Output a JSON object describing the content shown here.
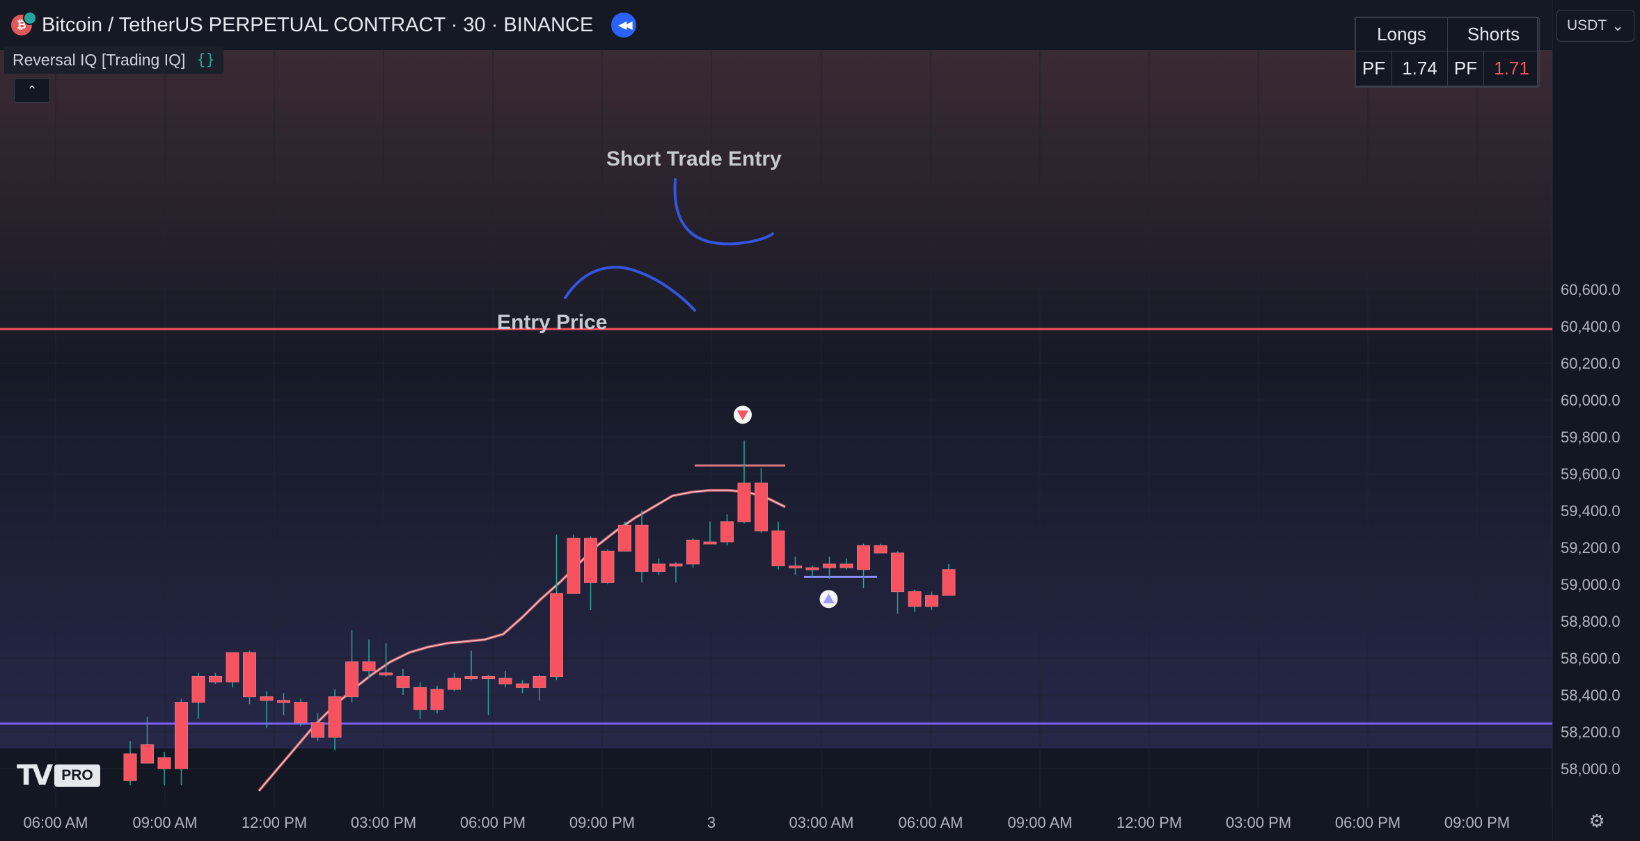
{
  "header": {
    "symbol_title": "Bitcoin / TetherUS PERPETUAL CONTRACT · 30 · BINANCE",
    "logo_letter": "₿",
    "replay_icon": "rewind-icon"
  },
  "indicator": {
    "name": "Reversal IQ [Trading IQ]",
    "source_icon": "{}"
  },
  "collapse_icon": "⌃",
  "stats": {
    "longs_label": "Longs",
    "shorts_label": "Shorts",
    "pf_label": "PF",
    "longs_pf": "1.74",
    "shorts_pf": "1.71"
  },
  "currency": {
    "label": "USDT",
    "caret": "⌄"
  },
  "logo": {
    "mark": "TV",
    "badge": "PRO"
  },
  "settings_icon": "gear-icon",
  "annotations": {
    "short_entry": "Short Trade Entry",
    "entry_price": "Entry Price"
  },
  "colors": {
    "background": "#131722",
    "up_candle": "#26a69a",
    "down_candle": "#f7525f",
    "resistance": "#f7525f",
    "support": "#7b61ff",
    "annotation_stroke": "#3355e0",
    "signal_down": "#f7525f",
    "signal_up": "#9c9cff"
  },
  "chart_data": {
    "type": "candlestick",
    "title": "Bitcoin / TetherUS PERPETUAL CONTRACT · 30 · BINANCE",
    "y_axis": {
      "side": "right",
      "ticks": [
        60600,
        60400,
        60200,
        60000,
        59800,
        59600,
        59400,
        59200,
        59000,
        58800,
        58600,
        58400,
        58200,
        58000
      ],
      "tick_labels": [
        "60,600.0",
        "60,400.0",
        "60,200.0",
        "60,000.0",
        "59,800.0",
        "59,600.0",
        "59,400.0",
        "59,200.0",
        "59,000.0",
        "58,800.0",
        "58,600.0",
        "58,400.0",
        "58,200.0",
        "58,000.0"
      ]
    },
    "x_axis": {
      "tick_labels": [
        "06:00 AM",
        "09:00 AM",
        "12:00 PM",
        "03:00 PM",
        "06:00 PM",
        "09:00 PM",
        "3",
        "03:00 AM",
        "06:00 AM",
        "09:00 AM",
        "12:00 PM",
        "03:00 PM",
        "06:00 PM",
        "09:00 PM"
      ],
      "interval": "30 minutes"
    },
    "candles": [
      {
        "o": 58080,
        "h": 58150,
        "l": 57910,
        "c": 57935
      },
      {
        "o": 58130,
        "h": 58280,
        "l": 58030,
        "c": 58030
      },
      {
        "o": 58060,
        "h": 58090,
        "l": 57910,
        "c": 58000
      },
      {
        "o": 58000,
        "h": 58380,
        "l": 57910,
        "c": 58360
      },
      {
        "o": 58360,
        "h": 58520,
        "l": 58270,
        "c": 58500
      },
      {
        "o": 58500,
        "h": 58520,
        "l": 58460,
        "c": 58470
      },
      {
        "o": 58470,
        "h": 58630,
        "l": 58440,
        "c": 58630
      },
      {
        "o": 58630,
        "h": 58640,
        "l": 58350,
        "c": 58390
      },
      {
        "o": 58390,
        "h": 58420,
        "l": 58220,
        "c": 58370
      },
      {
        "o": 58370,
        "h": 58410,
        "l": 58290,
        "c": 58360
      },
      {
        "o": 58360,
        "h": 58380,
        "l": 58230,
        "c": 58250
      },
      {
        "o": 58250,
        "h": 58300,
        "l": 58150,
        "c": 58170
      },
      {
        "o": 58170,
        "h": 58430,
        "l": 58100,
        "c": 58390
      },
      {
        "o": 58390,
        "h": 58750,
        "l": 58360,
        "c": 58580
      },
      {
        "o": 58580,
        "h": 58700,
        "l": 58490,
        "c": 58530
      },
      {
        "o": 58520,
        "h": 58680,
        "l": 58500,
        "c": 58510
      },
      {
        "o": 58500,
        "h": 58540,
        "l": 58400,
        "c": 58440
      },
      {
        "o": 58440,
        "h": 58470,
        "l": 58270,
        "c": 58320
      },
      {
        "o": 58320,
        "h": 58450,
        "l": 58300,
        "c": 58430
      },
      {
        "o": 58430,
        "h": 58520,
        "l": 58420,
        "c": 58490
      },
      {
        "o": 58490,
        "h": 58640,
        "l": 58480,
        "c": 58500
      },
      {
        "o": 58500,
        "h": 58510,
        "l": 58290,
        "c": 58490
      },
      {
        "o": 58490,
        "h": 58530,
        "l": 58440,
        "c": 58460
      },
      {
        "o": 58460,
        "h": 58480,
        "l": 58410,
        "c": 58440
      },
      {
        "o": 58440,
        "h": 58510,
        "l": 58370,
        "c": 58500
      },
      {
        "o": 58500,
        "h": 59270,
        "l": 58480,
        "c": 58950
      },
      {
        "o": 58950,
        "h": 59270,
        "l": 58960,
        "c": 59250
      },
      {
        "o": 59250,
        "h": 59260,
        "l": 58860,
        "c": 59010
      },
      {
        "o": 59010,
        "h": 59190,
        "l": 59000,
        "c": 59180
      },
      {
        "o": 59180,
        "h": 59340,
        "l": 59180,
        "c": 59320
      },
      {
        "o": 59320,
        "h": 59400,
        "l": 59010,
        "c": 59070
      },
      {
        "o": 59070,
        "h": 59140,
        "l": 59050,
        "c": 59110
      },
      {
        "o": 59100,
        "h": 59120,
        "l": 59010,
        "c": 59110
      },
      {
        "o": 59110,
        "h": 59250,
        "l": 59090,
        "c": 59240
      },
      {
        "o": 59230,
        "h": 59340,
        "l": 59220,
        "c": 59220
      },
      {
        "o": 59230,
        "h": 59380,
        "l": 59210,
        "c": 59340
      },
      {
        "o": 59340,
        "h": 59780,
        "l": 59330,
        "c": 59550
      },
      {
        "o": 59550,
        "h": 59630,
        "l": 59280,
        "c": 59290
      },
      {
        "o": 59290,
        "h": 59340,
        "l": 59080,
        "c": 59100
      },
      {
        "o": 59100,
        "h": 59150,
        "l": 59050,
        "c": 59090
      },
      {
        "o": 59090,
        "h": 59100,
        "l": 59040,
        "c": 59090
      },
      {
        "o": 59090,
        "h": 59150,
        "l": 59030,
        "c": 59110
      },
      {
        "o": 59110,
        "h": 59140,
        "l": 59080,
        "c": 59090
      },
      {
        "o": 59080,
        "h": 59220,
        "l": 58980,
        "c": 59210
      },
      {
        "o": 59210,
        "h": 59220,
        "l": 59180,
        "c": 59170
      },
      {
        "o": 59170,
        "h": 59180,
        "l": 58840,
        "c": 58960
      },
      {
        "o": 58960,
        "h": 58970,
        "l": 58850,
        "c": 58880
      },
      {
        "o": 58880,
        "h": 58960,
        "l": 58860,
        "c": 58940
      },
      {
        "o": 58940,
        "h": 59110,
        "l": 58940,
        "c": 59080
      }
    ],
    "candle_style": "pinned-red",
    "overlays": {
      "resistance_level": 60385,
      "support_level": 58245,
      "entry_price_level": 59645,
      "long_level": 59040,
      "moving_average": [
        57880,
        58000,
        58120,
        58240,
        58340,
        58430,
        58510,
        58580,
        58630,
        58660,
        58680,
        58690,
        58700,
        58730,
        58820,
        58920,
        59010,
        59110,
        59210,
        59290,
        59360,
        59420,
        59480,
        59500,
        59510,
        59510,
        59500,
        59470,
        59420
      ],
      "short_signal": {
        "index": 36,
        "price": 59920
      },
      "long_signal": {
        "index": 41,
        "price": 58920
      }
    },
    "annotations": [
      "Short Trade Entry",
      "Entry Price"
    ],
    "grid": true
  }
}
